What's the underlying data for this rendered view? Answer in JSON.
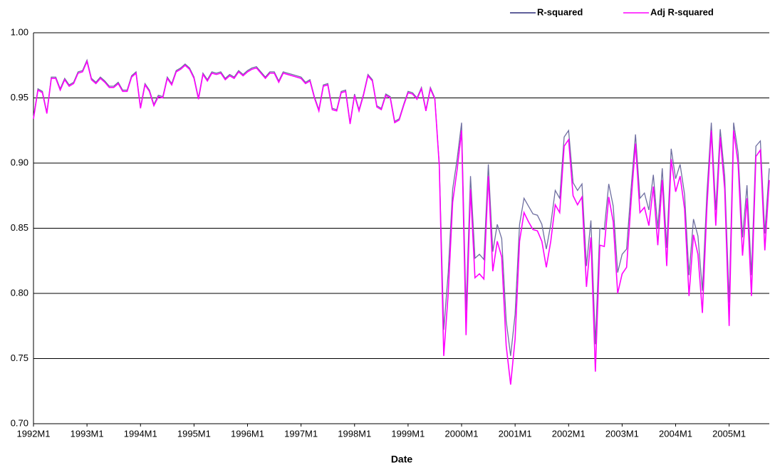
{
  "chart_data": {
    "type": "line",
    "x_label": "Date",
    "categories": [
      "1992M1",
      null,
      null,
      null,
      null,
      null,
      null,
      null,
      null,
      null,
      null,
      null,
      "1993M1",
      null,
      null,
      null,
      null,
      null,
      null,
      null,
      null,
      null,
      null,
      null,
      "1994M1",
      null,
      null,
      null,
      null,
      null,
      null,
      null,
      null,
      null,
      null,
      null,
      "1995M1",
      null,
      null,
      null,
      null,
      null,
      null,
      null,
      null,
      null,
      null,
      null,
      "1996M1",
      null,
      null,
      null,
      null,
      null,
      null,
      null,
      null,
      null,
      null,
      null,
      "1997M1",
      null,
      null,
      null,
      null,
      null,
      null,
      null,
      null,
      null,
      null,
      null,
      "1998M1",
      null,
      null,
      null,
      null,
      null,
      null,
      null,
      null,
      null,
      null,
      null,
      "1999M1",
      null,
      null,
      null,
      null,
      null,
      null,
      null,
      null,
      null,
      null,
      null,
      "2000M1",
      null,
      null,
      null,
      null,
      null,
      null,
      null,
      null,
      null,
      null,
      null,
      "2001M1",
      null,
      null,
      null,
      null,
      null,
      null,
      null,
      null,
      null,
      null,
      null,
      "2002M1",
      null,
      null,
      null,
      null,
      null,
      null,
      null,
      null,
      null,
      null,
      null,
      "2003M1",
      null,
      null,
      null,
      null,
      null,
      null,
      null,
      null,
      null,
      null,
      null,
      "2004M1",
      null,
      null,
      null,
      null,
      null,
      null,
      null,
      null,
      null,
      null,
      null,
      "2005M1",
      null,
      null,
      null,
      null,
      null,
      null,
      null,
      null,
      null
    ],
    "series": [
      {
        "name": "R-squared",
        "color": "#6e6ea0",
        "legend_color": "#2b2b7a",
        "values": [
          0.935,
          0.957,
          0.955,
          0.939,
          0.966,
          0.966,
          0.957,
          0.965,
          0.96,
          0.962,
          0.97,
          0.971,
          0.979,
          0.965,
          0.962,
          0.966,
          0.963,
          0.959,
          0.959,
          0.962,
          0.956,
          0.956,
          0.967,
          0.97,
          0.943,
          0.961,
          0.956,
          0.945,
          0.952,
          0.951,
          0.966,
          0.961,
          0.971,
          0.973,
          0.976,
          0.973,
          0.966,
          0.95,
          0.969,
          0.964,
          0.97,
          0.969,
          0.97,
          0.965,
          0.968,
          0.966,
          0.971,
          0.968,
          0.971,
          0.973,
          0.974,
          0.97,
          0.966,
          0.97,
          0.97,
          0.963,
          0.97,
          0.969,
          0.968,
          0.967,
          0.966,
          0.962,
          0.964,
          0.951,
          0.941,
          0.96,
          0.961,
          0.942,
          0.941,
          0.955,
          0.956,
          0.931,
          0.953,
          0.941,
          0.953,
          0.968,
          0.964,
          0.944,
          0.942,
          0.953,
          0.951,
          0.932,
          0.934,
          0.945,
          0.955,
          0.954,
          0.95,
          0.958,
          0.941,
          0.958,
          0.95,
          0.899,
          0.772,
          0.816,
          0.88,
          0.903,
          0.931,
          0.787,
          0.89,
          0.827,
          0.83,
          0.826,
          0.899,
          0.832,
          0.853,
          0.842,
          0.779,
          0.752,
          0.784,
          0.853,
          0.873,
          0.867,
          0.861,
          0.86,
          0.853,
          0.834,
          0.853,
          0.879,
          0.873,
          0.92,
          0.925,
          0.885,
          0.879,
          0.884,
          0.821,
          0.856,
          0.761,
          0.85,
          0.849,
          0.884,
          0.867,
          0.816,
          0.83,
          0.834,
          0.88,
          0.922,
          0.873,
          0.877,
          0.864,
          0.891,
          0.85,
          0.896,
          0.835,
          0.911,
          0.888,
          0.899,
          0.876,
          0.814,
          0.857,
          0.844,
          0.802,
          0.876,
          0.931,
          0.864,
          0.926,
          0.89,
          0.793,
          0.931,
          0.908,
          0.843,
          0.883,
          0.814,
          0.913,
          0.917,
          0.846,
          0.896
        ]
      },
      {
        "name": "Adj R-squared",
        "color": "#ff00ff",
        "values": [
          0.934,
          0.956,
          0.954,
          0.938,
          0.965,
          0.965,
          0.956,
          0.964,
          0.959,
          0.961,
          0.969,
          0.97,
          0.978,
          0.964,
          0.961,
          0.965,
          0.962,
          0.958,
          0.958,
          0.961,
          0.955,
          0.955,
          0.966,
          0.969,
          0.942,
          0.96,
          0.955,
          0.944,
          0.951,
          0.95,
          0.965,
          0.96,
          0.97,
          0.972,
          0.975,
          0.972,
          0.965,
          0.949,
          0.968,
          0.963,
          0.969,
          0.968,
          0.969,
          0.964,
          0.967,
          0.965,
          0.97,
          0.967,
          0.97,
          0.972,
          0.973,
          0.969,
          0.965,
          0.969,
          0.969,
          0.962,
          0.969,
          0.968,
          0.967,
          0.966,
          0.965,
          0.961,
          0.963,
          0.95,
          0.94,
          0.959,
          0.96,
          0.941,
          0.94,
          0.954,
          0.955,
          0.93,
          0.952,
          0.94,
          0.952,
          0.967,
          0.963,
          0.943,
          0.941,
          0.952,
          0.95,
          0.931,
          0.933,
          0.944,
          0.954,
          0.953,
          0.949,
          0.957,
          0.94,
          0.957,
          0.949,
          0.898,
          0.752,
          0.8,
          0.87,
          0.895,
          0.925,
          0.768,
          0.88,
          0.812,
          0.815,
          0.811,
          0.89,
          0.817,
          0.84,
          0.828,
          0.76,
          0.73,
          0.765,
          0.84,
          0.862,
          0.855,
          0.849,
          0.848,
          0.84,
          0.82,
          0.84,
          0.868,
          0.862,
          0.913,
          0.918,
          0.875,
          0.868,
          0.874,
          0.805,
          0.843,
          0.74,
          0.837,
          0.836,
          0.874,
          0.855,
          0.8,
          0.815,
          0.82,
          0.87,
          0.915,
          0.862,
          0.866,
          0.852,
          0.882,
          0.837,
          0.887,
          0.821,
          0.903,
          0.878,
          0.89,
          0.865,
          0.798,
          0.845,
          0.83,
          0.785,
          0.865,
          0.925,
          0.852,
          0.92,
          0.88,
          0.775,
          0.925,
          0.9,
          0.829,
          0.873,
          0.798,
          0.905,
          0.91,
          0.833,
          0.887
        ]
      }
    ],
    "ylim": [
      0.7,
      1.0
    ],
    "yticks": [
      {
        "value": 0.7,
        "label": "0.70"
      },
      {
        "value": 0.75,
        "label": "0.75"
      },
      {
        "value": 0.8,
        "label": "0.80"
      },
      {
        "value": 0.85,
        "label": "0.85"
      },
      {
        "value": 0.9,
        "label": "0.90"
      },
      {
        "value": 0.95,
        "label": "0.95"
      },
      {
        "value": 1.0,
        "label": "1.00"
      }
    ],
    "grid": true,
    "legend": "top-right"
  }
}
